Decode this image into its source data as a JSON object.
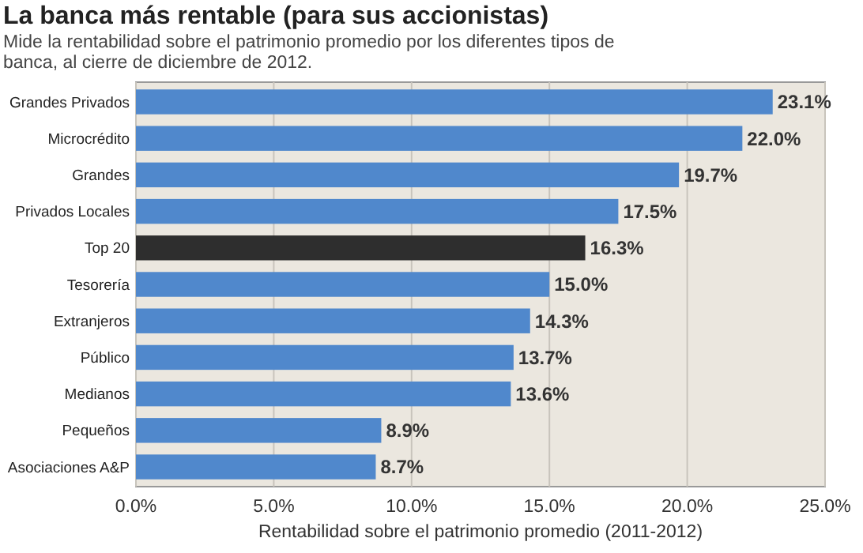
{
  "chart_data": {
    "type": "bar",
    "orientation": "horizontal",
    "title": "La banca más rentable (para sus accionistas)",
    "subtitle": "Mide la rentabilidad sobre el patrimonio promedio por los diferentes tipos de banca, al cierre de diciembre de 2012.",
    "xlabel": "Rentabilidad sobre el patrimonio promedio (2011-2012)",
    "categories": [
      "Grandes Privados",
      "Microcrédito",
      "Grandes",
      "Privados Locales",
      "Top 20",
      "Tesorería",
      "Extranjeros",
      "Público",
      "Medianos",
      "Pequeños",
      "Asociaciones A&P"
    ],
    "values": [
      23.1,
      22.0,
      19.7,
      17.5,
      16.3,
      15.0,
      14.3,
      13.7,
      13.6,
      8.9,
      8.7
    ],
    "colors": [
      "#5088cc",
      "#5088cc",
      "#5088cc",
      "#5088cc",
      "#2e2e2e",
      "#5088cc",
      "#5088cc",
      "#5088cc",
      "#5088cc",
      "#5088cc",
      "#5088cc"
    ],
    "value_labels": [
      "23.1%",
      "22.0%",
      "19.7%",
      "17.5%",
      "16.3%",
      "15.0%",
      "14.3%",
      "13.7%",
      "13.6%",
      "8.9%",
      "8.7%"
    ],
    "xlim": [
      0,
      25
    ],
    "xticks": [
      {
        "value": 0,
        "label": "0.0%"
      },
      {
        "value": 5,
        "label": "5.0%"
      },
      {
        "value": 10,
        "label": "10.0%"
      },
      {
        "value": 15,
        "label": "15.0%"
      },
      {
        "value": 20,
        "label": "20.0%"
      },
      {
        "value": 25,
        "label": "25.0%"
      }
    ],
    "grid": "x"
  }
}
